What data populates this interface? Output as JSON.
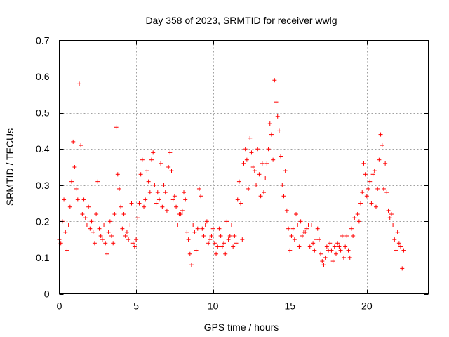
{
  "chart_data": {
    "type": "scatter",
    "title": "Day 358 of 2023, SRMTID for receiver wwlg",
    "xlabel": "GPS time / hours",
    "ylabel": "SRMTID / TECUs",
    "xlim": [
      0,
      24
    ],
    "ylim": [
      0,
      0.7
    ],
    "grid": true,
    "marker": "+",
    "series_color": "#ff0000",
    "x_ticks": [
      0,
      5,
      10,
      15,
      20
    ],
    "x_tick_labels": [
      "0",
      "5",
      "10",
      "15",
      "20"
    ],
    "y_ticks": [
      0,
      0.1,
      0.2,
      0.3,
      0.4,
      0.5,
      0.6,
      0.7
    ],
    "y_tick_labels": [
      "0",
      "0.1",
      "0.2",
      "0.3",
      "0.4",
      "0.5",
      "0.6",
      "0.7"
    ],
    "x_step": 0.1,
    "series": [
      {
        "name": "SRMTID",
        "x_start": 0.0,
        "y": [
          0.15,
          0.14,
          0.2,
          0.26,
          0.17,
          0.12,
          0.19,
          0.24,
          0.31,
          0.42,
          0.35,
          0.29,
          0.26,
          0.58,
          0.41,
          0.22,
          0.26,
          0.21,
          0.19,
          0.24,
          0.18,
          0.2,
          0.17,
          0.14,
          0.22,
          0.31,
          0.18,
          0.16,
          0.15,
          0.19,
          0.14,
          0.11,
          0.17,
          0.2,
          0.16,
          0.14,
          0.22,
          0.46,
          0.33,
          0.29,
          0.24,
          0.18,
          0.22,
          0.16,
          0.17,
          0.15,
          0.19,
          0.25,
          0.14,
          0.13,
          0.15,
          0.21,
          0.25,
          0.33,
          0.37,
          0.24,
          0.26,
          0.34,
          0.31,
          0.28,
          0.37,
          0.39,
          0.3,
          0.25,
          0.28,
          0.26,
          0.36,
          0.24,
          0.3,
          0.28,
          0.23,
          0.35,
          0.39,
          0.34,
          0.26,
          0.27,
          0.24,
          0.19,
          0.22,
          0.22,
          0.23,
          0.28,
          0.26,
          0.17,
          0.15,
          0.11,
          0.08,
          0.19,
          0.17,
          0.12,
          0.18,
          0.29,
          0.27,
          0.18,
          0.16,
          0.19,
          0.2,
          0.14,
          0.15,
          0.16,
          0.18,
          0.14,
          0.11,
          0.13,
          0.18,
          0.16,
          0.13,
          0.14,
          0.11,
          0.2,
          0.15,
          0.16,
          0.19,
          0.13,
          0.16,
          0.14,
          0.26,
          0.31,
          0.25,
          0.15,
          0.36,
          0.4,
          0.37,
          0.29,
          0.43,
          0.39,
          0.35,
          0.34,
          0.3,
          0.4,
          0.33,
          0.27,
          0.36,
          0.28,
          0.32,
          0.36,
          0.4,
          0.47,
          0.44,
          0.37,
          0.59,
          0.53,
          0.49,
          0.45,
          0.38,
          0.3,
          0.27,
          0.34,
          0.23,
          0.18,
          0.12,
          0.16,
          0.18,
          0.15,
          0.22,
          0.19,
          0.13,
          0.2,
          0.16,
          0.17,
          0.17,
          0.18,
          0.19,
          0.13,
          0.19,
          0.14,
          0.12,
          0.15,
          0.18,
          0.15,
          0.11,
          0.09,
          0.08,
          0.1,
          0.13,
          0.12,
          0.14,
          0.12,
          0.09,
          0.13,
          0.11,
          0.14,
          0.13,
          0.12,
          0.16,
          0.1,
          0.13,
          0.16,
          0.12,
          0.1,
          0.18,
          0.16,
          0.21,
          0.19,
          0.22,
          0.2,
          0.25,
          0.28,
          0.36,
          0.33,
          0.27,
          0.29,
          0.31,
          0.25,
          0.33,
          0.34,
          0.24,
          0.29,
          0.37,
          0.44,
          0.41,
          0.29,
          0.36,
          0.28,
          0.23,
          0.21,
          0.22,
          0.19,
          0.15,
          0.12,
          0.17,
          0.14,
          0.13,
          0.07,
          0.12
        ]
      }
    ]
  }
}
